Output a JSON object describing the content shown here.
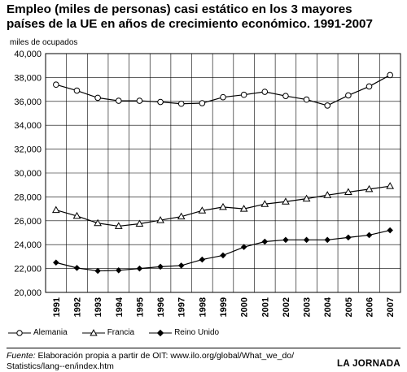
{
  "title_line1": "Empleo (miles de personas) casi estático en los 3 mayores",
  "title_line2": "países de la UE en años de crecimiento económico. 1991-2007",
  "chart_data": {
    "type": "line",
    "ylabel": "miles de ocupados",
    "ylim": [
      20000,
      40000
    ],
    "y_ticks": [
      "20,000",
      "22,000",
      "24,000",
      "26,000",
      "28,000",
      "30,000",
      "32,000",
      "34,000",
      "36,000",
      "38,000",
      "40,000"
    ],
    "x": [
      "1991",
      "1992",
      "1993",
      "1994",
      "1995",
      "1996",
      "1997",
      "1998",
      "1999",
      "2000",
      "2001",
      "2002",
      "2003",
      "2004",
      "2005",
      "2006",
      "2007"
    ],
    "grid": true,
    "legend_position": "bottom",
    "series": [
      {
        "name": "Alemania",
        "marker": "circle",
        "values": [
          37400,
          36900,
          36300,
          36050,
          36050,
          35950,
          35800,
          35850,
          36350,
          36550,
          36800,
          36450,
          36150,
          35650,
          36500,
          37250,
          38200
        ]
      },
      {
        "name": "Francia",
        "marker": "triangle",
        "values": [
          26900,
          26400,
          25800,
          25550,
          25750,
          26050,
          26350,
          26850,
          27150,
          27000,
          27400,
          27600,
          27850,
          28150,
          28400,
          28650,
          28900
        ]
      },
      {
        "name": "Reino Unido",
        "marker": "diamond",
        "values": [
          22500,
          22050,
          21800,
          21850,
          22000,
          22150,
          22250,
          22750,
          23100,
          23800,
          24250,
          24400,
          24400,
          24400,
          24600,
          24800,
          25200
        ]
      }
    ]
  },
  "source_label": "Fuente:",
  "source_text": " Elaboración propia a partir de OIT: www.ilo.org/global/What_we_do/",
  "source_text2": "Statistics/lang--en/index.htm",
  "brand": "LA JORNADA"
}
